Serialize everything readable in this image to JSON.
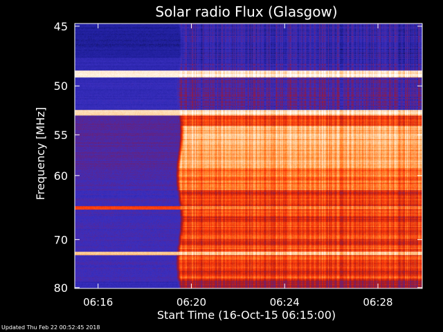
{
  "chart_data": {
    "type": "heatmap",
    "title": "Solar radio Flux (Glasgow)",
    "xlabel": "Start Time (16-Oct-15 06:15:00)",
    "ylabel_text": "Frequency ",
    "ylabel_unit": "MHz",
    "x_ticks_minutes": [
      16,
      20,
      24,
      28
    ],
    "x_tick_labels": [
      "06:16",
      "06:20",
      "06:24",
      "06:28"
    ],
    "xlim_minutes": [
      15.0,
      29.9
    ],
    "y_ticks": [
      45,
      50,
      55,
      60,
      70,
      80
    ],
    "y_tick_labels": [
      "45",
      "50",
      "55",
      "60",
      "70",
      "80"
    ],
    "ylim_mhz": [
      44.8,
      80.2
    ],
    "y_scale": "reciprocal",
    "burst_onset_minutes": 19.4,
    "colormap": [
      "#000000",
      "#1e1e9a",
      "#3a2fc0",
      "#7a1c5e",
      "#b81c12",
      "#ff3a0a",
      "#ff8a2a",
      "#ffd3a0",
      "#ffffff"
    ],
    "footer": "Updated Thu Feb 22 00:52:45 2018"
  }
}
